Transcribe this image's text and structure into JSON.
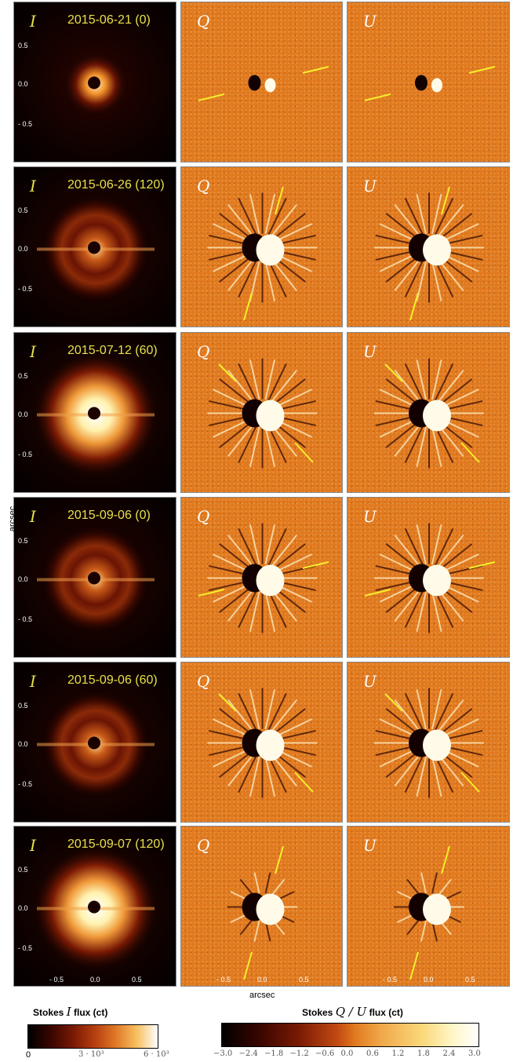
{
  "rows": [
    {
      "date": "2015-06-21 (0)",
      "intensity": "small",
      "polarization": "weak",
      "q_lines": "flat",
      "u_lines": "flat"
    },
    {
      "date": "2015-06-26 (120)",
      "intensity": "ring",
      "polarization": "strong",
      "q_lines": "vertical",
      "u_lines": "vertical"
    },
    {
      "date": "2015-07-12 (60)",
      "intensity": "bright",
      "polarization": "strong",
      "q_lines": "diagonal",
      "u_lines": "diagonal"
    },
    {
      "date": "2015-09-06 (0)",
      "intensity": "ring",
      "polarization": "strong",
      "q_lines": "flat",
      "u_lines": "flat"
    },
    {
      "date": "2015-09-06 (60)",
      "intensity": "ring",
      "polarization": "strong",
      "q_lines": "diagonal",
      "u_lines": "diagonal"
    },
    {
      "date": "2015-09-07 (120)",
      "intensity": "bright",
      "polarization": "medium",
      "q_lines": "vertical",
      "u_lines": "vertical"
    }
  ],
  "labels": {
    "I": "I",
    "Q": "Q",
    "U": "U"
  },
  "y_ticks": [
    "0.5",
    "0.0",
    "- 0.5"
  ],
  "x_ticks": [
    "- 0.5",
    "0.0",
    "0.5"
  ],
  "axis": {
    "y": "arcsec",
    "x": "arcsec"
  },
  "colorbars": {
    "intensity": {
      "title_prefix": "Stokes",
      "title_symbol": "I",
      "title_suffix": "flux  (ct)",
      "ticks": [
        "0",
        "3 · 10³",
        "6 · 10³"
      ]
    },
    "polarization": {
      "title_prefix": "Stokes",
      "title_symbol": "Q / U",
      "title_suffix": "flux  (ct)",
      "ticks": [
        "−3.0",
        "−2.4",
        "−1.8",
        "−1.2",
        "−0.6",
        "0.0",
        "0.6",
        "1.2",
        "1.8",
        "2.4",
        "3.0"
      ]
    }
  },
  "colors": {
    "label_yellow": "#e8e04a",
    "line_yellow": "#f6ef2a",
    "qu_background": "#e17a1f"
  }
}
